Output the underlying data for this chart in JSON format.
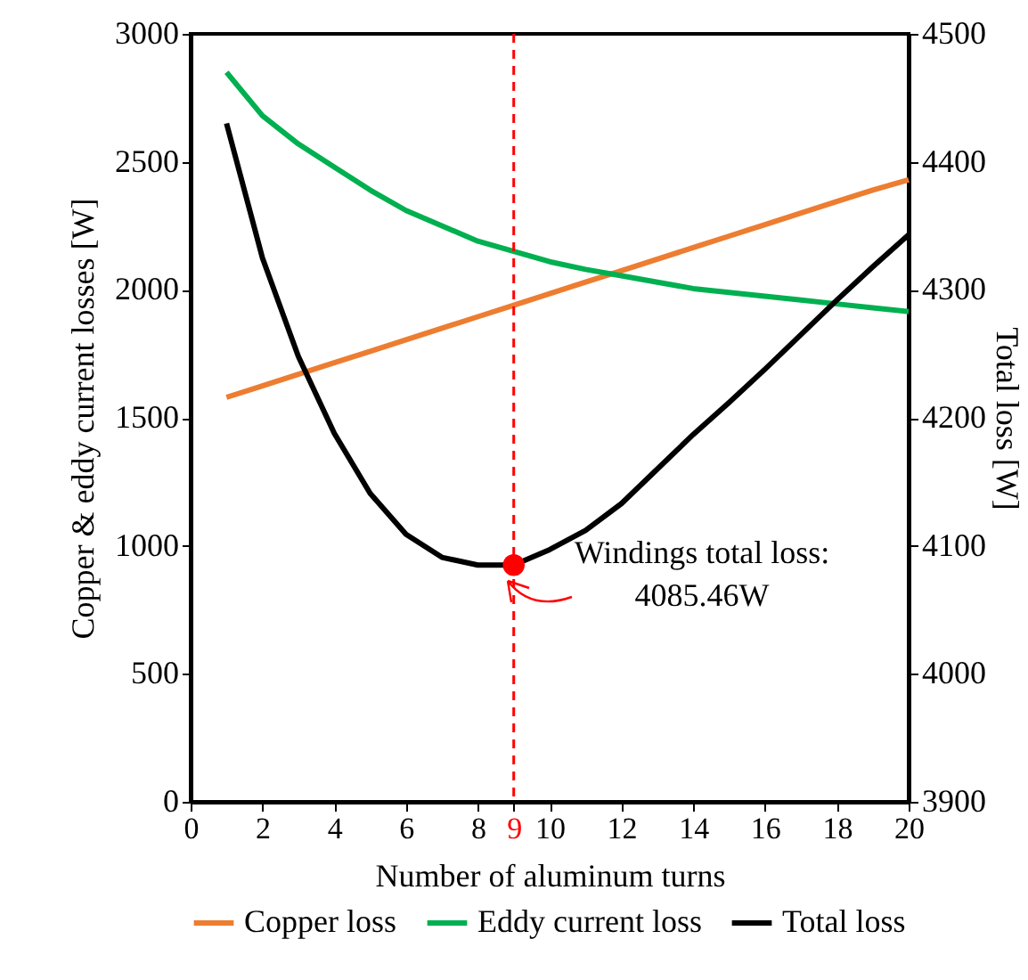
{
  "chart_data": {
    "type": "line",
    "xlabel": "Number of aluminum turns",
    "ylabel": "Copper & eddy current losses [W]",
    "y2label": "Total loss [W]",
    "x": [
      1,
      2,
      3,
      4,
      5,
      6,
      7,
      8,
      9,
      10,
      11,
      12,
      13,
      14,
      15,
      16,
      17,
      18,
      19,
      20
    ],
    "series": [
      {
        "name": "Copper loss",
        "color": "#ed7d31",
        "values": [
          1580,
          1625,
          1670,
          1715,
          1760,
          1805,
          1850,
          1895,
          1940,
          1985,
          2030,
          2075,
          2120,
          2165,
          2210,
          2255,
          2300,
          2345,
          2390,
          2430
        ]
      },
      {
        "name": "Eddy current loss",
        "color": "#00b050",
        "values": [
          2850,
          2680,
          2570,
          2480,
          2390,
          2310,
          2250,
          2190,
          2150,
          2110,
          2080,
          2055,
          2030,
          2005,
          1990,
          1975,
          1960,
          1945,
          1930,
          1915
        ]
      },
      {
        "name": "Total loss",
        "color": "#000000",
        "axis": "y2",
        "values": [
          4430,
          4325,
          4248,
          4188,
          4141,
          4109,
          4091,
          4085,
          4085,
          4097,
          4112,
          4133,
          4160,
          4187,
          4212,
          4238,
          4265,
          4292,
          4318,
          4343
        ]
      },
      {
        "type": "scatter",
        "color": "#ff0000",
        "axis": "y2",
        "x": [
          9
        ],
        "values": [
          4085
        ]
      }
    ],
    "xlim": [
      0,
      20
    ],
    "xticks": [
      0,
      2,
      4,
      6,
      8,
      9,
      10,
      12,
      14,
      16,
      18,
      20
    ],
    "ylim": [
      0,
      3000
    ],
    "yticks": [
      0,
      500,
      1000,
      1500,
      2000,
      2500,
      3000
    ],
    "y2lim": [
      3900,
      4500
    ],
    "y2ticks": [
      3900,
      4000,
      4100,
      4200,
      4300,
      4400,
      4500
    ],
    "ref_lines": [
      {
        "axis": "x",
        "value": 9,
        "color": "#ff0000",
        "line_style": "dashed"
      }
    ],
    "annotations": [
      "Windings total loss:\n4085.46W"
    ],
    "legend": "bottom",
    "grid": false,
    "line_style": "solid"
  }
}
